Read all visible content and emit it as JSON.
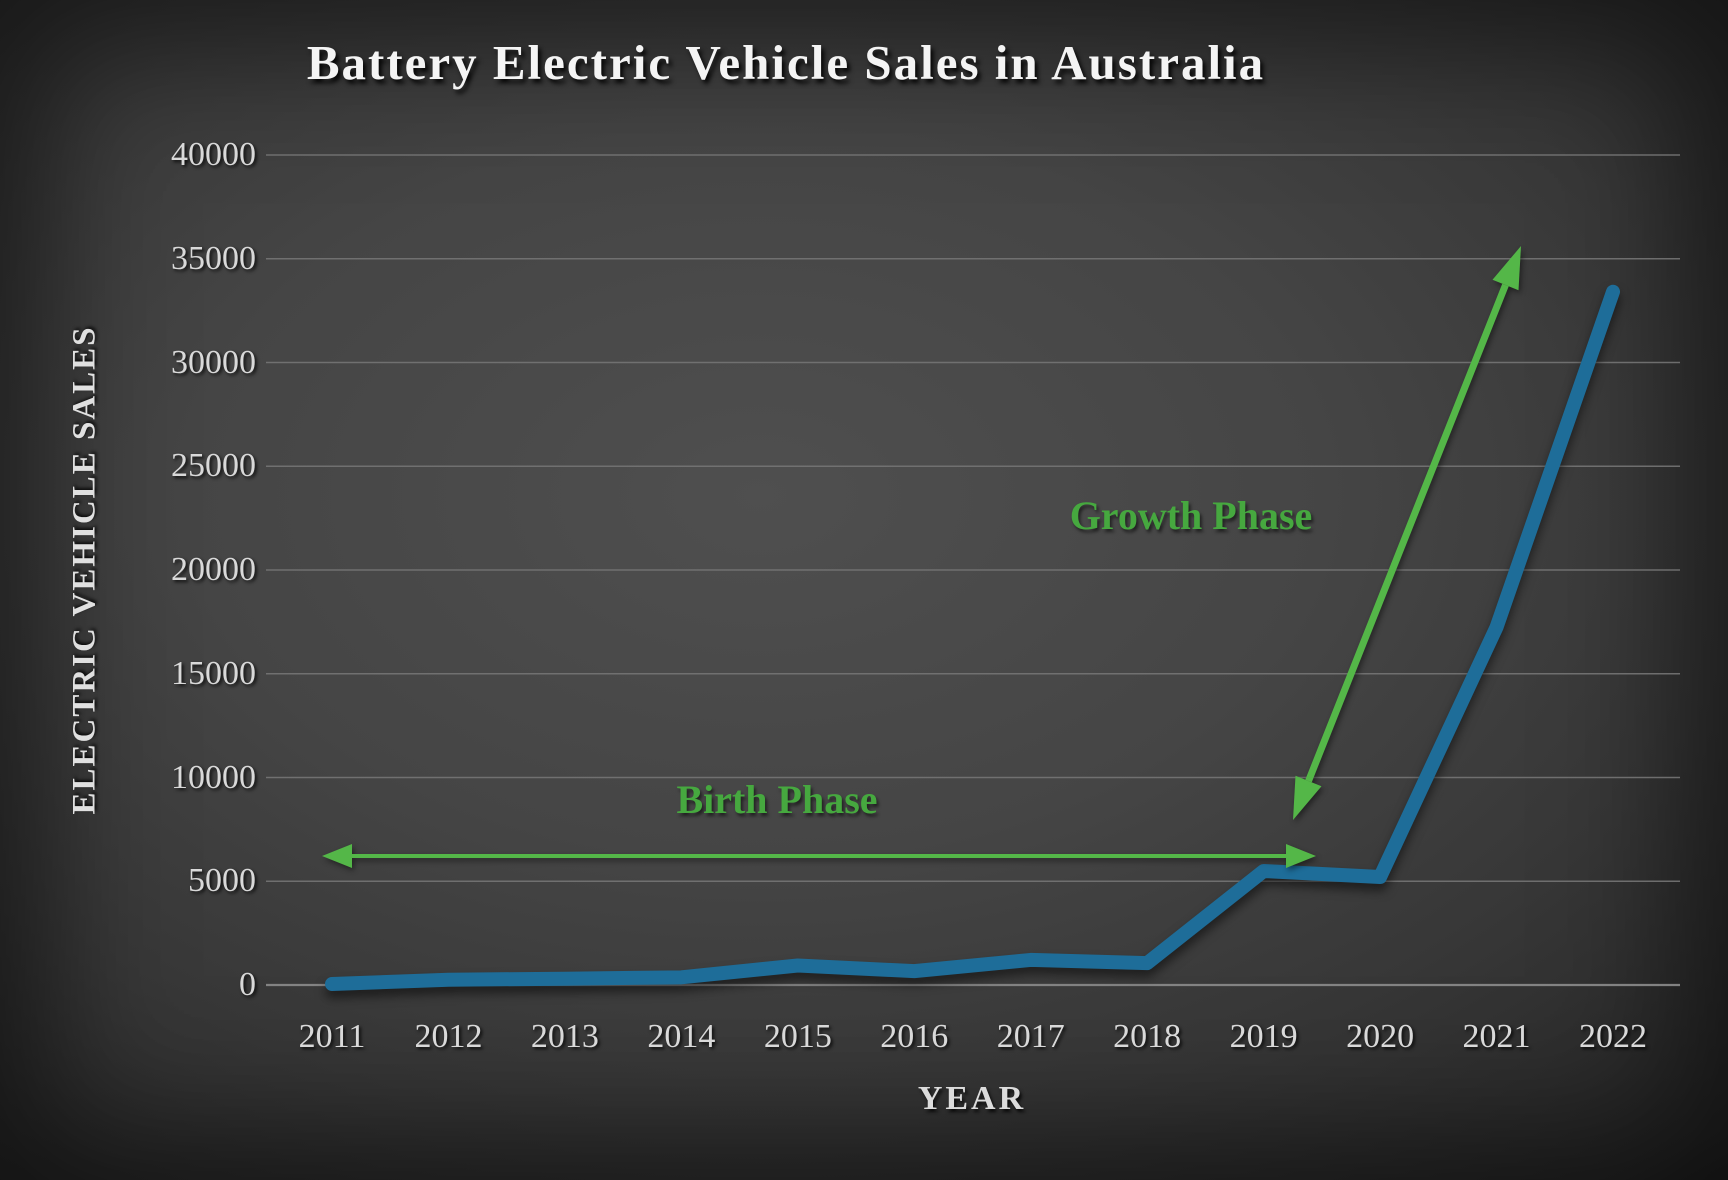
{
  "chart_data": {
    "type": "line",
    "title": "Battery Electric Vehicle Sales in Australia",
    "xlabel": "YEAR",
    "ylabel": "ELECTRIC VEHICLE SALES",
    "categories": [
      "2011",
      "2012",
      "2013",
      "2014",
      "2015",
      "2016",
      "2017",
      "2018",
      "2019",
      "2020",
      "2021",
      "2022"
    ],
    "series": [
      {
        "name": "Electric Vehicle Sales",
        "values": [
          49,
          253,
          304,
          370,
          941,
          668,
          1208,
          1053,
          5495,
          5205,
          17243,
          33410
        ]
      }
    ],
    "ylim": [
      0,
      40000
    ],
    "yticks": [
      0,
      5000,
      10000,
      15000,
      20000,
      25000,
      30000,
      35000,
      40000
    ],
    "grid": true,
    "legend": "none",
    "annotations": [
      {
        "label": "Birth Phase",
        "phase_span": "2011-2019",
        "arrow": "horizontal-double"
      },
      {
        "label": "Growth Phase",
        "phase_span": "2019-2021",
        "arrow": "diagonal-double"
      }
    ],
    "colors": {
      "line": "#1e6d99",
      "annotation_text": "#46a83f",
      "arrow": "#54b748",
      "gridline": "#757575",
      "axis_line": "#8c8c8c",
      "tick_text": "#d9d9d9",
      "title_text": "#f4f4f4",
      "background_center": "#4f4f4f",
      "background_edge": "#1f1f1f"
    }
  }
}
